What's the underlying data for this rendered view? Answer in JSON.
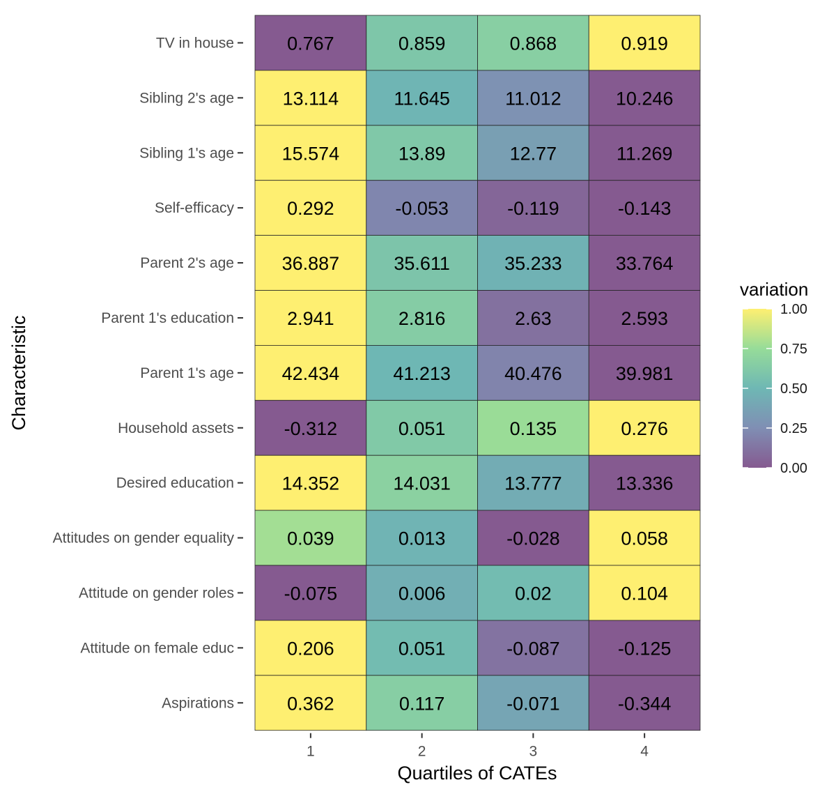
{
  "chart_data": {
    "type": "heatmap",
    "xlabel": "Quartiles of CATEs",
    "ylabel": "Characteristic",
    "columns": [
      "1",
      "2",
      "3",
      "4"
    ],
    "rows": [
      {
        "label": "TV in house",
        "values": [
          "0.767",
          "0.859",
          "0.868",
          "0.919"
        ],
        "variation": [
          0.0,
          0.6,
          0.66,
          1.0
        ]
      },
      {
        "label": "Sibling 2's age",
        "values": [
          "13.114",
          "11.645",
          "11.012",
          "10.246"
        ],
        "variation": [
          1.0,
          0.49,
          0.27,
          0.0
        ]
      },
      {
        "label": "Sibling 1's age",
        "values": [
          "15.574",
          "13.89",
          "12.77",
          "11.269"
        ],
        "variation": [
          1.0,
          0.61,
          0.35,
          0.0
        ]
      },
      {
        "label": "Self-efficacy",
        "values": [
          "0.292",
          "-0.053",
          "-0.119",
          "-0.143"
        ],
        "variation": [
          1.0,
          0.21,
          0.06,
          0.0
        ]
      },
      {
        "label": "Parent 2's age",
        "values": [
          "36.887",
          "35.611",
          "35.233",
          "33.764"
        ],
        "variation": [
          1.0,
          0.59,
          0.47,
          0.0
        ]
      },
      {
        "label": "Parent 1's education",
        "values": [
          "2.941",
          "2.816",
          "2.63",
          "2.593"
        ],
        "variation": [
          1.0,
          0.64,
          0.11,
          0.0
        ]
      },
      {
        "label": "Parent 1's age",
        "values": [
          "42.434",
          "41.213",
          "40.476",
          "39.981"
        ],
        "variation": [
          1.0,
          0.5,
          0.2,
          0.0
        ]
      },
      {
        "label": "Household assets",
        "values": [
          "-0.312",
          "0.051",
          "0.135",
          "0.276"
        ],
        "variation": [
          0.0,
          0.62,
          0.76,
          1.0
        ]
      },
      {
        "label": "Desired education",
        "values": [
          "14.352",
          "14.031",
          "13.777",
          "13.336"
        ],
        "variation": [
          1.0,
          0.68,
          0.43,
          0.0
        ]
      },
      {
        "label": "Attitudes on gender equality",
        "values": [
          "0.039",
          "0.013",
          "-0.028",
          "0.058"
        ],
        "variation": [
          0.78,
          0.48,
          0.0,
          1.0
        ]
      },
      {
        "label": "Attitude on gender roles",
        "values": [
          "-0.075",
          "0.006",
          "0.02",
          "0.104"
        ],
        "variation": [
          0.0,
          0.45,
          0.53,
          1.0
        ]
      },
      {
        "label": "Attitude on female educ",
        "values": [
          "0.206",
          "0.051",
          "-0.087",
          "-0.125"
        ],
        "variation": [
          1.0,
          0.53,
          0.12,
          0.0
        ]
      },
      {
        "label": "Aspirations",
        "values": [
          "0.362",
          "0.117",
          "-0.071",
          "-0.344"
        ],
        "variation": [
          1.0,
          0.65,
          0.39,
          0.0
        ]
      }
    ],
    "legend": {
      "title": "variation",
      "ticks": [
        "1.00",
        "0.75",
        "0.50",
        "0.25",
        "0.00"
      ],
      "range": [
        0,
        1
      ],
      "colorscale": "viridis",
      "placement": "right"
    },
    "grid": false
  }
}
